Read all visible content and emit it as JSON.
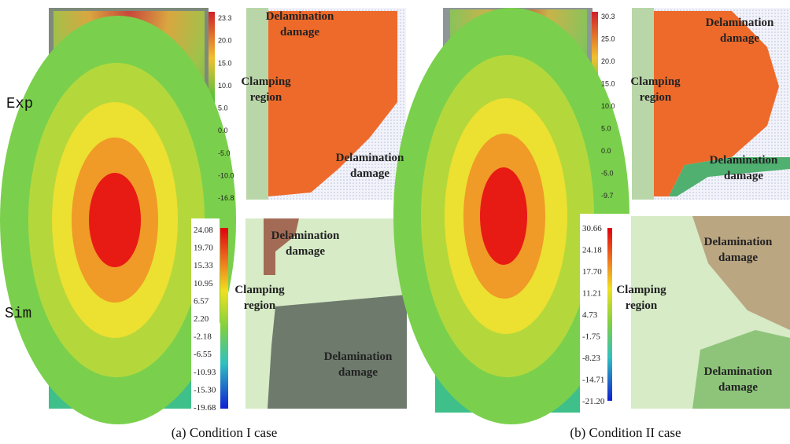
{
  "rows": [
    "Exp",
    "Sim"
  ],
  "panels": [
    {
      "caption": "(a) Condition I case",
      "exp_colorbar": [
        "23.3",
        "20.0",
        "15.0",
        "10.0",
        "5.0",
        "0.0",
        "-5.0",
        "-10.0",
        "-16.8"
      ],
      "sim_colorbar": [
        "24.08",
        "19.70",
        "15.33",
        "10.95",
        "6.57",
        "2.20",
        "-2.18",
        "-6.55",
        "-10.93",
        "-15.30",
        "-19.68"
      ],
      "exp_annotations": [
        [
          "Delamination",
          "damage"
        ],
        [
          "Clamping",
          "region"
        ],
        [
          "Delamination",
          "damage"
        ]
      ],
      "sim_annotations": [
        [
          "Delamination",
          "damage"
        ],
        [
          "Clamping",
          "region"
        ],
        [
          "Delamination",
          "damage"
        ]
      ]
    },
    {
      "caption": "(b) Condition II case",
      "exp_colorbar": [
        "30.3",
        "25.0",
        "20.0",
        "15.0",
        "10.0",
        "5.0",
        "0.0",
        "-5.0",
        "-9.7"
      ],
      "sim_colorbar": [
        "30.66",
        "24.18",
        "17.70",
        "11.21",
        "4.73",
        "-1.75",
        "-8.23",
        "-14.71",
        "-21.20"
      ],
      "exp_annotations": [
        [
          "Delamination",
          "damage"
        ],
        [
          "Clamping",
          "region"
        ],
        [
          "Delamination",
          "damage"
        ]
      ],
      "sim_annotations": [
        [
          "Delamination",
          "damage"
        ],
        [
          "Clamping",
          "region"
        ],
        [
          "Delamination",
          "damage"
        ]
      ]
    }
  ]
}
